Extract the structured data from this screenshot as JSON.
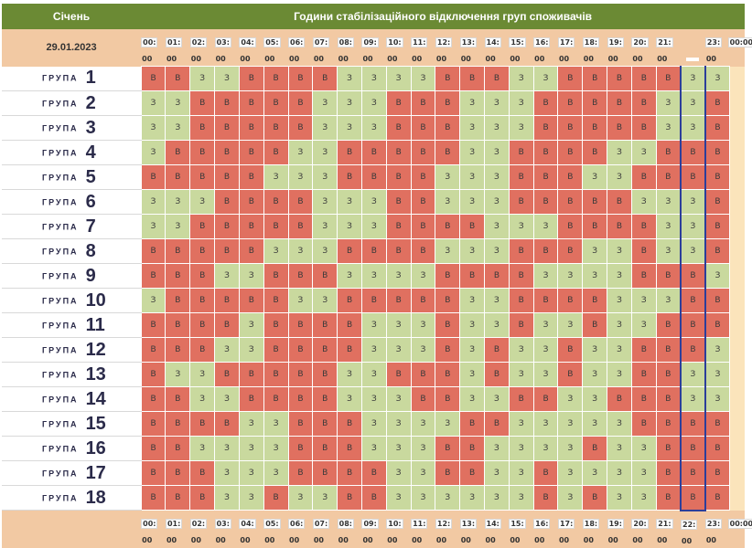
{
  "header": {
    "month": "Січень",
    "title": "Години стабілізаційного відключення груп споживачів",
    "date": "29.01.2023"
  },
  "hours": [
    "00:",
    "01:",
    "02:",
    "03:",
    "04:",
    "05:",
    "06:",
    "07:",
    "08:",
    "09:",
    "10:",
    "11:",
    "12:",
    "13:",
    "14:",
    "15:",
    "16:",
    "17:",
    "18:",
    "19:",
    "20:",
    "21:",
    "22:",
    "23:"
  ],
  "hour_end": [
    "00",
    "00",
    "00",
    "00",
    "00",
    "00",
    "00",
    "00",
    "00",
    "00",
    "00",
    "00",
    "00",
    "00",
    "00",
    "00",
    "00",
    "00",
    "00",
    "00",
    "00",
    "00",
    "00",
    "00"
  ],
  "end_label": "00:00",
  "group_word": "ГРУПА",
  "current_hour_index": 22,
  "legend": {
    "v": "В",
    "z": "З"
  },
  "colors": {
    "v": "#e07060",
    "z": "#c9d99e",
    "header": "#6b8a34",
    "band": "#f2c9a3",
    "current": "#2c3e9a"
  },
  "groups": [
    {
      "n": "1",
      "s": "VVZZVVVVZZZZVVVZZVVVVVZZ"
    },
    {
      "n": "2",
      "s": "ZZVVVVVZZZVVVZZZVVVVVZZV"
    },
    {
      "n": "3",
      "s": "ZZVVVVVZZZVVVZZZVVVVVZZV"
    },
    {
      "n": "4",
      "s": "ZVVVVVZZVVVVVZZVVVVZZVVV"
    },
    {
      "n": "5",
      "s": "VVVVVZZZVVVVZZZVVVZZVVVV"
    },
    {
      "n": "6",
      "s": "ZZZVVVVZZZVVZZZVVVVVZZZV"
    },
    {
      "n": "7",
      "s": "ZZVVVVVZZZVVVVZZZVVVVZZV"
    },
    {
      "n": "8",
      "s": "VVVVVZZZVVVVZZZVVVZZVZZV"
    },
    {
      "n": "9",
      "s": "VVVZZVVVZZZZVVVVZZZZVVVZ"
    },
    {
      "n": "10",
      "s": "ZVVVVVZZVVVVVZZVVVVZZZVV"
    },
    {
      "n": "11",
      "s": "VVVVZVVVVZZZVZZVZZVZZVVV"
    },
    {
      "n": "12",
      "s": "VVVZZVVVVZZZVZVZZVZZVVVZ"
    },
    {
      "n": "13",
      "s": "VZZVVVVVZZVVVZVZZVZZVVZZ"
    },
    {
      "n": "14",
      "s": "VVZZVVVVZZZVVZZVVZZVVVZZ"
    },
    {
      "n": "15",
      "s": "VVVVZZVVVZZZZVVZZZZZVVVV"
    },
    {
      "n": "16",
      "s": "VVZZZZVVVZZZVVZZZZVZZVVV"
    },
    {
      "n": "17",
      "s": "VVVZZZVVVVZZVVZZVZZZZVVV"
    },
    {
      "n": "18",
      "s": "VVVZZVZZVVZZZZZZVZVZZVVV"
    }
  ]
}
